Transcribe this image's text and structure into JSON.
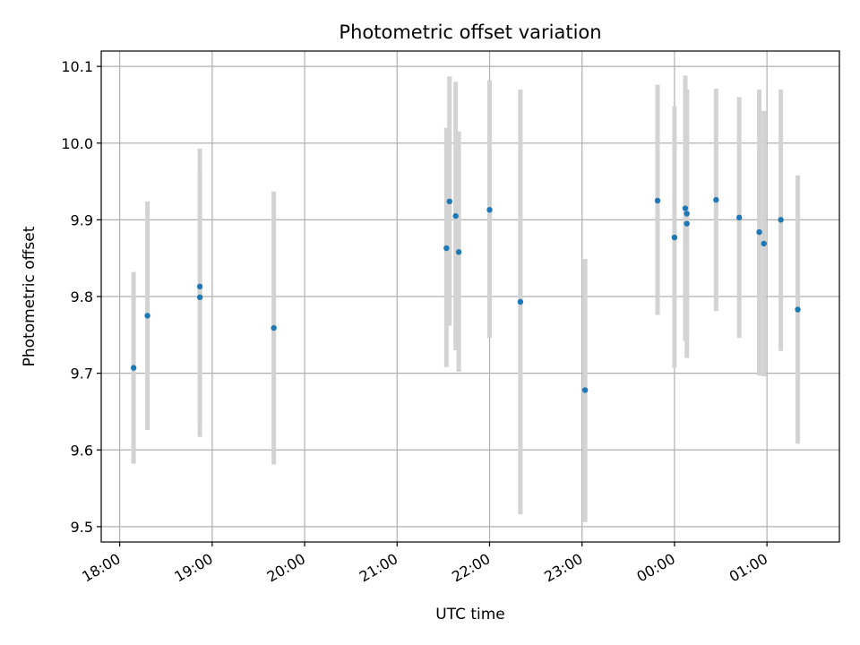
{
  "chart_data": {
    "type": "scatter",
    "title": "Photometric offset variation",
    "xlabel": "UTC time",
    "ylabel": "Photometric offset",
    "x_axis_type": "time",
    "x_ticks": [
      "18:00",
      "19:00",
      "20:00",
      "21:00",
      "22:00",
      "23:00",
      "00:00",
      "01:00"
    ],
    "y_ticks": [
      "9.5",
      "9.6",
      "9.7",
      "9.8",
      "9.9",
      "10.0",
      "10.1"
    ],
    "xlim": [
      "17:48",
      "01:47"
    ],
    "ylim": [
      9.48,
      10.12
    ],
    "grid": true,
    "marker_color": "#1f77b4",
    "errorbar_color": "#d3d3d3",
    "points": [
      {
        "t": "18:09",
        "y": 9.707,
        "lo": 9.582,
        "hi": 9.832
      },
      {
        "t": "18:18",
        "y": 9.775,
        "lo": 9.626,
        "hi": 9.924
      },
      {
        "t": "18:52",
        "y": 9.799,
        "lo": 9.633,
        "hi": 9.965
      },
      {
        "t": "18:52",
        "y": 9.813,
        "lo": 9.617,
        "hi": 9.993
      },
      {
        "t": "19:40",
        "y": 9.759,
        "lo": 9.581,
        "hi": 9.937
      },
      {
        "t": "21:32",
        "y": 9.863,
        "lo": 9.708,
        "hi": 10.02
      },
      {
        "t": "21:34",
        "y": 9.924,
        "lo": 9.762,
        "hi": 10.087
      },
      {
        "t": "21:38",
        "y": 9.905,
        "lo": 9.73,
        "hi": 10.08
      },
      {
        "t": "21:40",
        "y": 9.858,
        "lo": 9.702,
        "hi": 10.015
      },
      {
        "t": "22:00",
        "y": 9.913,
        "lo": 9.746,
        "hi": 10.082
      },
      {
        "t": "22:20",
        "y": 9.793,
        "lo": 9.516,
        "hi": 10.07
      },
      {
        "t": "23:02",
        "y": 9.678,
        "lo": 9.506,
        "hi": 9.849
      },
      {
        "t": "23:49",
        "y": 9.925,
        "lo": 9.776,
        "hi": 10.076
      },
      {
        "t": "00:00",
        "y": 9.877,
        "lo": 9.707,
        "hi": 10.048
      },
      {
        "t": "00:07",
        "y": 9.915,
        "lo": 9.742,
        "hi": 10.088
      },
      {
        "t": "00:08",
        "y": 9.908,
        "lo": 9.749,
        "hi": 10.07
      },
      {
        "t": "00:08",
        "y": 9.895,
        "lo": 9.72,
        "hi": 10.07
      },
      {
        "t": "00:27",
        "y": 9.926,
        "lo": 9.781,
        "hi": 10.071
      },
      {
        "t": "00:42",
        "y": 9.903,
        "lo": 9.746,
        "hi": 10.06
      },
      {
        "t": "00:55",
        "y": 9.884,
        "lo": 9.697,
        "hi": 10.07
      },
      {
        "t": "00:58",
        "y": 9.869,
        "lo": 9.696,
        "hi": 10.042
      },
      {
        "t": "01:09",
        "y": 9.9,
        "lo": 9.729,
        "hi": 10.07
      },
      {
        "t": "01:20",
        "y": 9.783,
        "lo": 9.608,
        "hi": 9.958
      }
    ]
  }
}
